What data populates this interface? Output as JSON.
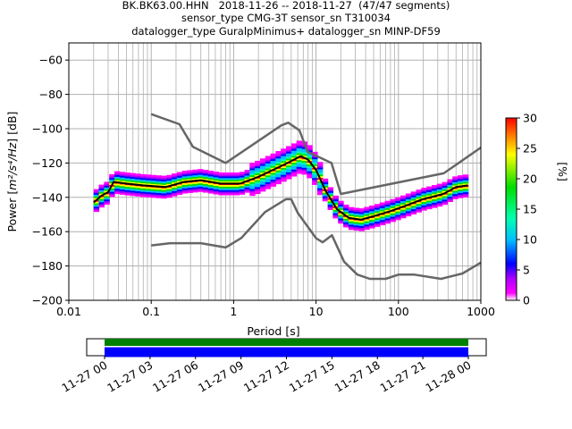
{
  "title": {
    "line1": "BK.BK63.00.HHN   2018-11-26 -- 2018-11-27  (47/47 segments)",
    "line2": "sensor_type CMG-3T sensor_sn T310034",
    "line3": "datalogger_type GuralpMinimus+ datalogger_sn MINP-DF59"
  },
  "colors": {
    "median": "#000000",
    "noise_models": "#666666",
    "timeline_green": "#008000",
    "timeline_blue": "#0000ff",
    "grid": "#b0b0b0"
  },
  "chart_data": [
    {
      "type": "heatmap",
      "name": "ppsd",
      "xlabel": "Period [s]",
      "ylabel_prefix": "Power [",
      "ylabel_unit": "m²/s⁴/Hz",
      "ylabel_suffix": "] [dB]",
      "xscale": "log",
      "xlim": [
        0.01,
        1000
      ],
      "ylim": [
        -200,
        -50
      ],
      "xticks": [
        0.01,
        0.1,
        1,
        10,
        100,
        1000
      ],
      "xtick_labels": [
        "0.01",
        "0.1",
        "1",
        "10",
        "100",
        "1000"
      ],
      "yticks": [
        -60,
        -80,
        -100,
        -120,
        -140,
        -160,
        -180,
        -200
      ],
      "grid": true,
      "median": {
        "x": [
          0.02,
          0.025,
          0.03,
          0.035,
          0.05,
          0.08,
          0.15,
          0.25,
          0.4,
          0.7,
          1.2,
          2,
          3,
          4.5,
          6.5,
          8,
          10,
          13,
          18,
          25,
          35,
          50,
          80,
          120,
          200,
          350,
          500,
          700
        ],
        "y": [
          -143,
          -139,
          -137,
          -131,
          -132,
          -133,
          -134,
          -131,
          -130,
          -132,
          -132,
          -128,
          -124,
          -120,
          -116,
          -118,
          -124,
          -136,
          -147,
          -152,
          -153,
          -151,
          -148,
          -145,
          -141,
          -138,
          -134,
          -133
        ]
      },
      "noise_model_high": {
        "x": [
          0.1,
          0.22,
          0.32,
          0.8,
          3.8,
          4.6,
          6.3,
          7.9,
          15.4,
          20,
          354.8,
          1000
        ],
        "y": [
          -91.5,
          -97.4,
          -110.5,
          -120,
          -98,
          -96.5,
          -101,
          -113.5,
          -120,
          -138,
          -126,
          -111
        ]
      },
      "noise_model_low": {
        "x": [
          0.1,
          0.17,
          0.4,
          0.8,
          1.24,
          2.4,
          4.3,
          5,
          6,
          10,
          12,
          15.6,
          21.9,
          31.6,
          45,
          70,
          101,
          154,
          328,
          600,
          1000
        ],
        "y": [
          -168,
          -166.7,
          -166.7,
          -169.2,
          -163.7,
          -148.6,
          -141.1,
          -141.1,
          -149,
          -163.8,
          -166.2,
          -162.1,
          -177.5,
          -185,
          -187.5,
          -187.5,
          -185,
          -185,
          -187.5,
          -184.4,
          -178
        ]
      },
      "colorbar": {
        "label": "[%]",
        "ticks": [
          0,
          5,
          10,
          15,
          20,
          25,
          30
        ],
        "range": [
          0,
          30
        ]
      }
    },
    {
      "type": "bar",
      "name": "timeline",
      "xtick_labels": [
        "11-27 00",
        "11-27 03",
        "11-27 06",
        "11-27 09",
        "11-27 12",
        "11-27 15",
        "11-27 18",
        "11-27 21",
        "11-28 00"
      ],
      "coverage_rows": [
        "green",
        "blue"
      ]
    }
  ]
}
